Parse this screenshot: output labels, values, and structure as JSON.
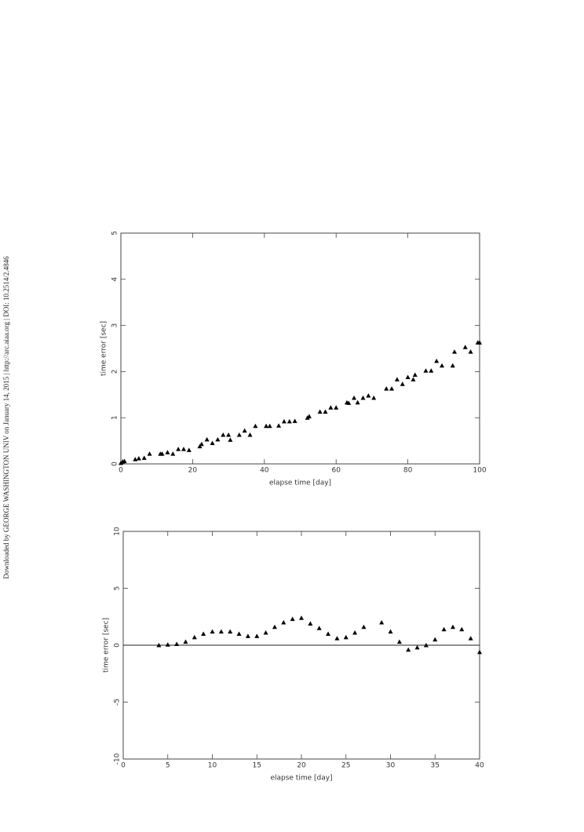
{
  "sidebar_text": "Downloaded by GEORGE WASHINGTON UNIV on January 14, 2015 | http://arc.aiaa.org | DOI: 10.2514/2.4846",
  "chart_data": [
    {
      "type": "scatter",
      "xlabel": "elapse time [day]",
      "ylabel": "time error [sec]",
      "color": "#000000",
      "xlim": [
        0,
        100
      ],
      "ylim": [
        0,
        5
      ],
      "xticks": [
        0,
        20,
        40,
        60,
        80,
        100
      ],
      "yticks": [
        0,
        1,
        2,
        3,
        4,
        5
      ],
      "zero_line": false,
      "x": [
        0,
        0.5,
        1,
        4,
        5,
        6.5,
        8,
        11,
        11.5,
        13,
        14.5,
        16,
        17.5,
        19,
        22,
        22.5,
        24,
        25.5,
        27,
        28.5,
        30,
        30.5,
        33,
        34.5,
        36,
        37.5,
        40.5,
        41.5,
        44,
        45.5,
        47,
        48.5,
        52,
        52.5,
        55.5,
        57,
        58.5,
        60,
        63,
        63.5,
        65,
        66,
        67.5,
        69,
        70.5,
        74,
        75.5,
        77,
        78.5,
        80,
        81.5,
        82,
        85,
        86.5,
        88,
        89.5,
        92.5,
        93,
        96,
        97.5,
        99.5,
        100
      ],
      "values": [
        0.02,
        0.05,
        0.06,
        0.1,
        0.12,
        0.13,
        0.22,
        0.22,
        0.22,
        0.25,
        0.22,
        0.32,
        0.32,
        0.3,
        0.38,
        0.43,
        0.53,
        0.45,
        0.53,
        0.63,
        0.63,
        0.52,
        0.63,
        0.72,
        0.63,
        0.82,
        0.82,
        0.82,
        0.83,
        0.92,
        0.92,
        0.93,
        1.0,
        1.03,
        1.13,
        1.13,
        1.22,
        1.22,
        1.33,
        1.32,
        1.43,
        1.33,
        1.43,
        1.48,
        1.43,
        1.63,
        1.63,
        1.83,
        1.73,
        1.88,
        1.83,
        1.93,
        2.02,
        2.02,
        2.23,
        2.13,
        2.13,
        2.43,
        2.53,
        2.43,
        2.63,
        2.63
      ]
    },
    {
      "type": "scatter",
      "xlabel": "elapse time [day]",
      "ylabel": "time error [sec]",
      "color": "#000000",
      "xlim": [
        0,
        40
      ],
      "ylim": [
        -10,
        10
      ],
      "xticks": [
        0,
        5,
        10,
        15,
        20,
        25,
        30,
        35,
        40
      ],
      "yticks": [
        -10,
        -5,
        0,
        5,
        10
      ],
      "zero_line": true,
      "x": [
        4,
        5,
        6,
        7,
        8,
        9,
        10,
        11,
        12,
        13,
        14,
        15,
        16,
        17,
        18,
        19,
        20,
        21,
        22,
        23,
        24,
        25,
        26,
        27,
        29,
        30,
        31,
        32,
        33,
        34,
        35,
        36,
        37,
        38,
        39,
        40
      ],
      "values": [
        0,
        0.05,
        0.1,
        0.3,
        0.7,
        1.0,
        1.2,
        1.2,
        1.2,
        1.0,
        0.8,
        0.8,
        1.1,
        1.6,
        2.0,
        2.3,
        2.4,
        1.9,
        1.5,
        1.0,
        0.6,
        0.7,
        1.1,
        1.6,
        2.0,
        1.2,
        0.3,
        -0.4,
        -0.2,
        0.0,
        0.5,
        1.4,
        1.6,
        1.4,
        0.6,
        -0.6
      ]
    }
  ]
}
